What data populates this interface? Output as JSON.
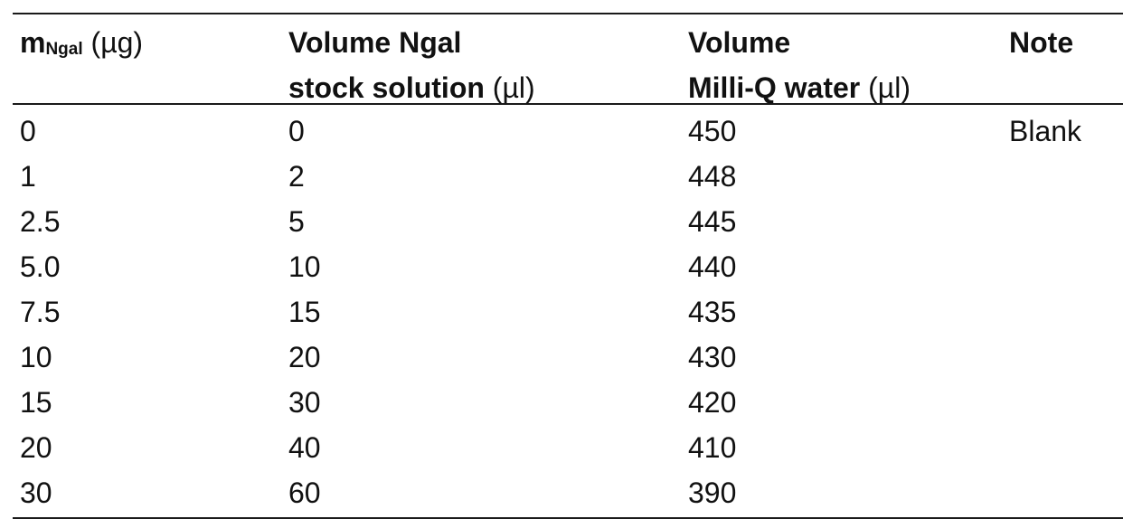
{
  "header": {
    "col1_main": "m",
    "col1_sub": "Ngal",
    "col1_unit": " (µg)",
    "col2_line1": "Volume Ngal",
    "col2_line2_bold": "stock solution",
    "col2_line2_unit": " (µl)",
    "col3_line1": "Volume",
    "col3_line2_bold": "Milli-Q water",
    "col3_line2_unit": " (µl)",
    "col4": "Note"
  },
  "rows": [
    {
      "mass": "0",
      "stock": "0",
      "water": "450",
      "note": "Blank"
    },
    {
      "mass": "1",
      "stock": "2",
      "water": "448",
      "note": ""
    },
    {
      "mass": "2.5",
      "stock": "5",
      "water": "445",
      "note": ""
    },
    {
      "mass": "5.0",
      "stock": "10",
      "water": "440",
      "note": ""
    },
    {
      "mass": "7.5",
      "stock": "15",
      "water": "435",
      "note": ""
    },
    {
      "mass": "10",
      "stock": "20",
      "water": "430",
      "note": ""
    },
    {
      "mass": "15",
      "stock": "30",
      "water": "420",
      "note": ""
    },
    {
      "mass": "20",
      "stock": "40",
      "water": "410",
      "note": ""
    },
    {
      "mass": "30",
      "stock": "60",
      "water": "390",
      "note": ""
    }
  ]
}
